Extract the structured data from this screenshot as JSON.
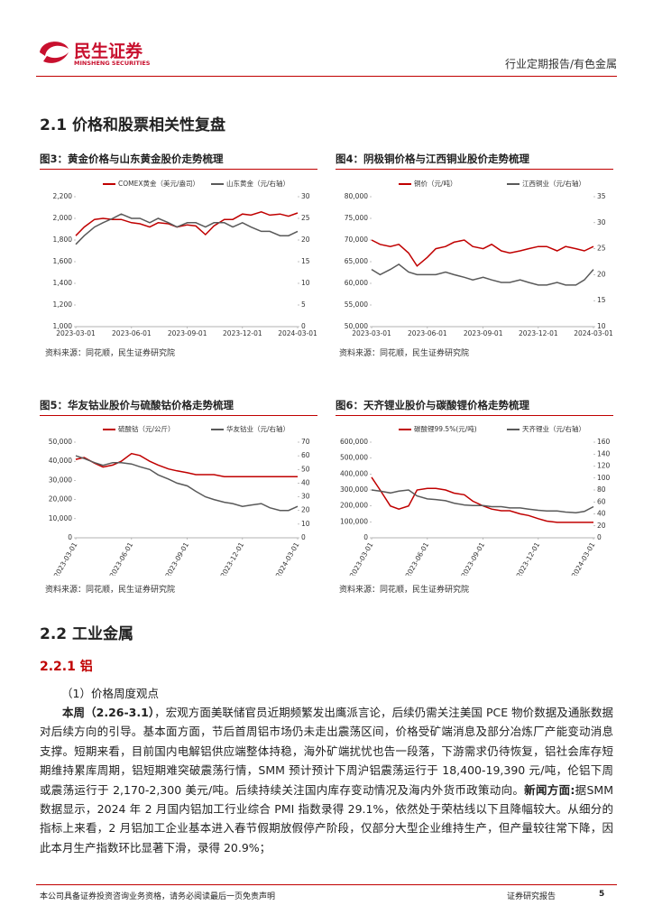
{
  "header": {
    "brand": "民生证券",
    "brand_en": "MINSHENG SECURITIES",
    "report_type": "行业定期报告/有色金属"
  },
  "section_1": {
    "title": "2.1 价格和股票相关性复盘"
  },
  "chart_data": [
    {
      "type": "line",
      "title": "图3：黄金价格与山东黄金股价走势梳理",
      "source": "资料来源：同花顺，民生证券研究院",
      "x": [
        "2023-03-01",
        "2023-03-15",
        "2023-04-01",
        "2023-04-15",
        "2023-05-01",
        "2023-05-15",
        "2023-06-01",
        "2023-06-15",
        "2023-07-01",
        "2023-07-15",
        "2023-08-01",
        "2023-08-15",
        "2023-09-01",
        "2023-09-15",
        "2023-10-01",
        "2023-10-15",
        "2023-11-01",
        "2023-11-15",
        "2023-12-01",
        "2023-12-15",
        "2024-01-01",
        "2024-01-15",
        "2024-02-01",
        "2024-02-15",
        "2024-03-01"
      ],
      "xlim": [
        "2023-03-01",
        "2024-03-01"
      ],
      "xticks": [
        "2023-03-01",
        "2023-06-01",
        "2023-09-01",
        "2023-12-01",
        "2024-03-01"
      ],
      "ylim": [
        1000,
        2200
      ],
      "yticks": [
        {
          "value": 1000,
          "label": "1,000"
        },
        {
          "value": 1200,
          "label": "1,200"
        },
        {
          "value": 1400,
          "label": "1,400"
        },
        {
          "value": 1600,
          "label": "1,600"
        },
        {
          "value": 1800,
          "label": "1,800"
        },
        {
          "value": 2000,
          "label": "2,000"
        },
        {
          "value": 2200,
          "label": "2,200"
        }
      ],
      "y2lim": [
        0,
        30
      ],
      "y2ticks": [
        0,
        5,
        10,
        15,
        20,
        25,
        30
      ],
      "series": [
        {
          "name": "COMEX黄金（美元/盎司）",
          "color": "#c00000",
          "values": [
            1840,
            1920,
            1990,
            2000,
            1990,
            1990,
            1960,
            1950,
            1920,
            1960,
            1950,
            1920,
            1940,
            1930,
            1850,
            1930,
            1990,
            1990,
            2040,
            2030,
            2060,
            2030,
            2040,
            2020,
            2050
          ]
        },
        {
          "name": "山东黄金（元/右轴）",
          "color": "#595959",
          "axis": "y2",
          "values": [
            19,
            21,
            23,
            24,
            25,
            26,
            25,
            25,
            24,
            25,
            24,
            23,
            24,
            24,
            23,
            24,
            24,
            23,
            24,
            23,
            22,
            22,
            21,
            21,
            22
          ]
        }
      ]
    },
    {
      "type": "line",
      "title": "图4：阴极铜价格与江西铜业股价走势梳理",
      "source": "资料来源：同花顺，民生证券研究院",
      "x": [
        "2023-03-01",
        "2023-03-15",
        "2023-04-01",
        "2023-04-15",
        "2023-05-01",
        "2023-05-15",
        "2023-06-01",
        "2023-06-15",
        "2023-07-01",
        "2023-07-15",
        "2023-08-01",
        "2023-08-15",
        "2023-09-01",
        "2023-09-15",
        "2023-10-01",
        "2023-10-15",
        "2023-11-01",
        "2023-11-15",
        "2023-12-01",
        "2023-12-15",
        "2024-01-01",
        "2024-01-15",
        "2024-02-01",
        "2024-02-15",
        "2024-03-01"
      ],
      "xlim": [
        "2023-03-01",
        "2024-03-01"
      ],
      "xticks": [
        "2023-03-01",
        "2023-06-01",
        "2023-09-01",
        "2023-12-01",
        "2024-03-01"
      ],
      "ylim": [
        50000,
        80000
      ],
      "yticks": [
        {
          "value": 50000,
          "label": "50,000"
        },
        {
          "value": 55000,
          "label": "55,000"
        },
        {
          "value": 60000,
          "label": "60,000"
        },
        {
          "value": 65000,
          "label": "65,000"
        },
        {
          "value": 70000,
          "label": "70,000"
        },
        {
          "value": 75000,
          "label": "75,000"
        },
        {
          "value": 80000,
          "label": "80,000"
        }
      ],
      "y2lim": [
        10,
        35
      ],
      "y2ticks": [
        10,
        15,
        20,
        25,
        30,
        35
      ],
      "series": [
        {
          "name": "铜价（元/吨）",
          "color": "#c00000",
          "values": [
            70000,
            69000,
            68500,
            69000,
            67000,
            64000,
            66000,
            68000,
            68500,
            69500,
            70000,
            68500,
            68000,
            69000,
            67500,
            67000,
            67500,
            68000,
            68500,
            68500,
            67500,
            68500,
            68000,
            67500,
            68500
          ]
        },
        {
          "name": "江西铜业（元/右轴）",
          "color": "#595959",
          "axis": "y2",
          "values": [
            21,
            20,
            21,
            22,
            20.5,
            20,
            20,
            20,
            20.5,
            20,
            19.5,
            19,
            19.5,
            19,
            18.5,
            18.5,
            19,
            18.5,
            18,
            18,
            18.5,
            18,
            18,
            19,
            21
          ]
        }
      ]
    },
    {
      "type": "line",
      "title": "图5：华友钴业股价与硫酸钴价格走势梳理",
      "source": "资料来源：同花顺，民生证券研究院",
      "x_label_rotation": -60,
      "x": [
        "2023-03-01",
        "2023-03-15",
        "2023-04-01",
        "2023-04-15",
        "2023-05-01",
        "2023-05-15",
        "2023-06-01",
        "2023-06-15",
        "2023-07-01",
        "2023-07-15",
        "2023-08-01",
        "2023-08-15",
        "2023-09-01",
        "2023-09-15",
        "2023-10-01",
        "2023-10-15",
        "2023-11-01",
        "2023-11-15",
        "2023-12-01",
        "2023-12-15",
        "2024-01-01",
        "2024-01-15",
        "2024-02-01",
        "2024-02-15",
        "2024-03-01"
      ],
      "xlim": [
        "2023-03-01",
        "2024-03-01"
      ],
      "xticks": [
        "2023-03-01",
        "2023-06-01",
        "2023-09-01",
        "2023-12-01",
        "2024-03-01"
      ],
      "ylim": [
        0,
        50000
      ],
      "yticks": [
        0,
        {
          "value": 10000,
          "label": "10,000"
        },
        {
          "value": 20000,
          "label": "20,000"
        },
        {
          "value": 30000,
          "label": "30,000"
        },
        {
          "value": 40000,
          "label": "40,000"
        },
        {
          "value": 50000,
          "label": "50,000"
        }
      ],
      "y2lim": [
        0,
        70
      ],
      "y2ticks": [
        0,
        10,
        20,
        30,
        40,
        50,
        60,
        70
      ],
      "series": [
        {
          "name": "硫酸钴（元/公斤）",
          "color": "#c00000",
          "values": [
            41000,
            42000,
            39000,
            37000,
            38000,
            40000,
            44000,
            43000,
            40000,
            38000,
            36000,
            35000,
            34000,
            33000,
            33000,
            33000,
            32000,
            32000,
            32000,
            32000,
            32000,
            32000,
            32000,
            32000,
            32000
          ]
        },
        {
          "name": "华友钴业（元/右轴）",
          "color": "#595959",
          "axis": "y2",
          "values": [
            60,
            58,
            55,
            53,
            55,
            55,
            54,
            52,
            50,
            46,
            43,
            40,
            38,
            34,
            30,
            28,
            26,
            25,
            23,
            24,
            25,
            22,
            20,
            20,
            23
          ]
        }
      ]
    },
    {
      "type": "line",
      "title": "图6：天齐锂业股价与碳酸锂价格走势梳理",
      "source": "资料来源：同花顺，民生证券研究院",
      "x_label_rotation": -60,
      "x": [
        "2023-03-01",
        "2023-03-15",
        "2023-04-01",
        "2023-04-15",
        "2023-05-01",
        "2023-05-15",
        "2023-06-01",
        "2023-06-15",
        "2023-07-01",
        "2023-07-15",
        "2023-08-01",
        "2023-08-15",
        "2023-09-01",
        "2023-09-15",
        "2023-10-01",
        "2023-10-15",
        "2023-11-01",
        "2023-11-15",
        "2023-12-01",
        "2023-12-15",
        "2024-01-01",
        "2024-01-15",
        "2024-02-01",
        "2024-02-15",
        "2024-03-01"
      ],
      "xlim": [
        "2023-03-01",
        "2024-03-01"
      ],
      "xticks": [
        "2023-03-01",
        "2023-06-01",
        "2023-09-01",
        "2023-12-01",
        "2024-03-01"
      ],
      "ylim": [
        0,
        600000
      ],
      "yticks": [
        0,
        {
          "value": 100000,
          "label": "100,000"
        },
        {
          "value": 200000,
          "label": "200,000"
        },
        {
          "value": 300000,
          "label": "300,000"
        },
        {
          "value": 400000,
          "label": "400,000"
        },
        {
          "value": 500000,
          "label": "500,000"
        },
        {
          "value": 600000,
          "label": "600,000"
        }
      ],
      "y2lim": [
        0,
        160
      ],
      "y2ticks": [
        0,
        20,
        40,
        60,
        80,
        100,
        120,
        140,
        160
      ],
      "series": [
        {
          "name": "碳酸锂99.5%(元/吨)",
          "color": "#c00000",
          "values": [
            380000,
            300000,
            200000,
            180000,
            200000,
            300000,
            310000,
            310000,
            300000,
            280000,
            270000,
            230000,
            200000,
            180000,
            170000,
            170000,
            150000,
            140000,
            120000,
            105000,
            97000,
            97000,
            97000,
            97000,
            97000
          ]
        },
        {
          "name": "天齐锂业（元/右轴）",
          "color": "#595959",
          "axis": "y2",
          "values": [
            80,
            78,
            75,
            78,
            80,
            70,
            65,
            64,
            62,
            58,
            55,
            54,
            54,
            52,
            52,
            50,
            50,
            48,
            46,
            45,
            45,
            43,
            42,
            44,
            52
          ]
        }
      ]
    }
  ],
  "section_2": {
    "title": "2.2 工业金属",
    "subsection": "2.2.1 铝",
    "item": "（1）价格周度观点",
    "lead": "本周（2.26-3.1）",
    "text_1": "，宏观方面美联储官员近期频繁发出鹰派言论，后续仍需关注美国 PCE 物价数据及通胀数据对后续方向的引导。基本面方面，节后首周铝市场仍未走出震荡区间，价格受矿端消息及部分冶炼厂产能变动消息支撑。短期来看，目前国内电解铝供应端整体持稳，海外矿端扰忧也告一段落，下游需求仍待恢复，铝社会库存短期维持累库周期，铝短期难突破震荡行情，SMM 预计预计下周沪铝震荡运行于 18,400-19,390 元/吨，伦铝下周或震荡运行于 2,170-2,300 美元/吨。后续持续关注国内库存变动情况及海内外货币政策动向。",
    "news_label": "新闻方面:",
    "text_2": "据SMM 数据显示，2024 年 2 月国内铝加工行业综合 PMI 指数录得 29.1%，依然处于荣枯线以下且降幅较大。从细分的指标上来看，2 月铝加工企业基本进入春节假期放假停产阶段，仅部分大型企业维持生产，但产量较往常下降，因此本月生产指数环比显著下滑，录得 20.9%；"
  },
  "footer": {
    "disclaimer": "本公司具备证券投资咨询业务资格，请务必阅读最后一页免责声明",
    "label": "证券研究报告",
    "page": "5"
  }
}
